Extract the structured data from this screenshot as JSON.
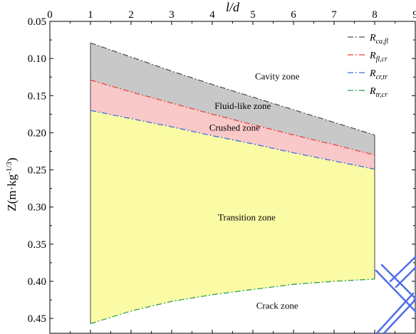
{
  "chart_data": {
    "type": "area",
    "xlabel": "l/d",
    "ylabel": "Z(m·kg",
    "ylabel_sup": "-1/3",
    "ylabel_close": ")",
    "xlim": [
      0,
      9
    ],
    "ylim": [
      0.05,
      0.47
    ],
    "y_inverted": true,
    "x_axis_position": "top",
    "grid": false,
    "legend_position": "top-right",
    "x_ticks": [
      0,
      1,
      2,
      3,
      4,
      5,
      6,
      7,
      8,
      9
    ],
    "y_ticks": [
      0.05,
      0.1,
      0.15,
      0.2,
      0.25,
      0.3,
      0.35,
      0.4,
      0.45
    ],
    "x_tick_labels": [
      "0",
      "1",
      "2",
      "3",
      "4",
      "5",
      "6",
      "7",
      "8",
      "9"
    ],
    "y_tick_labels": [
      "0.05",
      "0.10",
      "0.15",
      "0.20",
      "0.25",
      "0.30",
      "0.35",
      "0.40",
      "0.45"
    ],
    "x": [
      1,
      2,
      3,
      4,
      5,
      6,
      7,
      8
    ],
    "series": [
      {
        "name": "R",
        "sub": "ca,fl",
        "color": "#555555",
        "values": [
          0.079,
          0.098,
          0.117,
          0.135,
          0.152,
          0.169,
          0.186,
          0.203
        ]
      },
      {
        "name": "R",
        "sub": "fl,cr",
        "color": "#e8453c",
        "values": [
          0.129,
          0.145,
          0.16,
          0.175,
          0.189,
          0.203,
          0.216,
          0.23
        ]
      },
      {
        "name": "R",
        "sub": "cr,tr",
        "color": "#3a6fd8",
        "values": [
          0.17,
          0.181,
          0.192,
          0.204,
          0.215,
          0.227,
          0.238,
          0.249
        ]
      },
      {
        "name": "R",
        "sub": "tr,cr",
        "color": "#2e9e4f",
        "values": [
          0.457,
          0.44,
          0.427,
          0.418,
          0.411,
          0.404,
          0.4,
          0.397
        ]
      }
    ],
    "fills": [
      {
        "between": [
          0,
          1
        ],
        "color": "#c8c8c8"
      },
      {
        "between": [
          1,
          2
        ],
        "color": "#f9c8c8"
      },
      {
        "between": [
          2,
          3
        ],
        "color": "#fbfba6"
      }
    ],
    "annotations": [
      {
        "text": "Cavity zone",
        "x": 5.6,
        "y": 0.128
      },
      {
        "text": "Fluid-like zone",
        "x": 4.75,
        "y": 0.168
      },
      {
        "text": "Crushed zone",
        "x": 4.55,
        "y": 0.197
      },
      {
        "text": "Transition zone",
        "x": 4.85,
        "y": 0.318
      },
      {
        "text": "Crack zone",
        "x": 5.6,
        "y": 0.437
      }
    ]
  },
  "colors": {
    "watermark": "#4f6ee8",
    "axis": "#000000"
  }
}
